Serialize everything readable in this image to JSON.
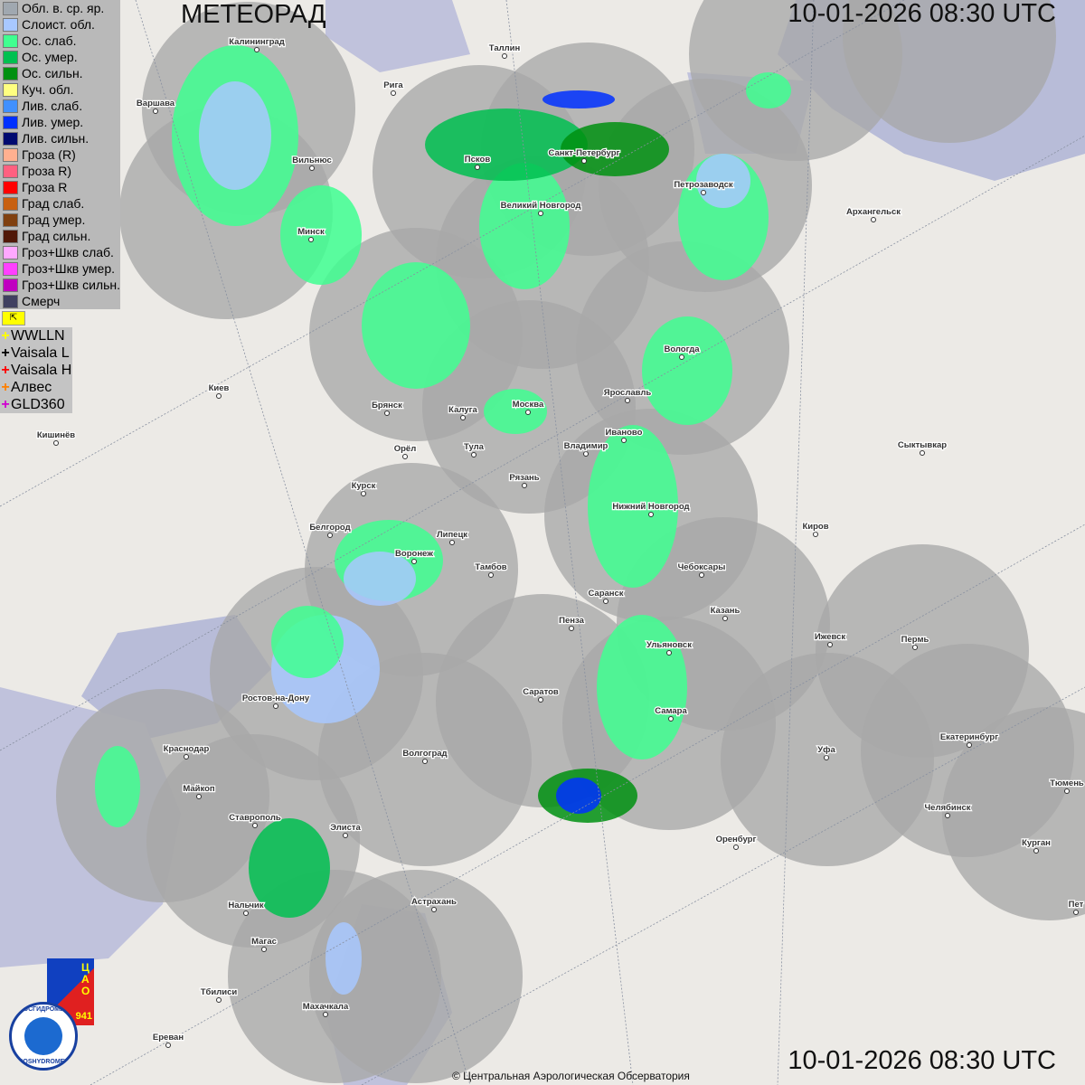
{
  "header": {
    "title": "МЕТЕОРАД",
    "timestamp": "10-01-2026  08:30 UTC"
  },
  "footer": {
    "timestamp": "10-01-2026  08:30 UTC",
    "copyright": "© Центральная Аэрологическая Обсерватория"
  },
  "legend": [
    {
      "label": "Обл. в. ср. яр.",
      "color": "#a0a8b0"
    },
    {
      "label": "Слоист. обл.",
      "color": "#a8c8ff"
    },
    {
      "label": "Ос. слаб.",
      "color": "#40ff90"
    },
    {
      "label": "Ос. умер.",
      "color": "#00c050"
    },
    {
      "label": "Ос. сильн.",
      "color": "#009010"
    },
    {
      "label": "Куч. обл.",
      "color": "#ffff80"
    },
    {
      "label": "Лив. слаб.",
      "color": "#4090ff"
    },
    {
      "label": "Лив. умер.",
      "color": "#0030ff"
    },
    {
      "label": "Лив. сильн.",
      "color": "#000a70"
    },
    {
      "label": "Гроза (R)",
      "color": "#ffb090"
    },
    {
      "label": "Гроза R)",
      "color": "#ff6080"
    },
    {
      "label": "Гроза R",
      "color": "#ff0000"
    },
    {
      "label": "Град слаб.",
      "color": "#c86010"
    },
    {
      "label": "Град умер.",
      "color": "#804010"
    },
    {
      "label": "Град сильн.",
      "color": "#501808"
    },
    {
      "label": "Гроз+Шкв слаб.",
      "color": "#ffa8ff"
    },
    {
      "label": "Гроз+Шкв умер.",
      "color": "#ff40ff"
    },
    {
      "label": "Гроз+Шкв сильн.",
      "color": "#c000c0"
    },
    {
      "label": "Смерч",
      "color": "#404060"
    }
  ],
  "lightning": [
    {
      "label": "WWLLN",
      "color": "#ffff00"
    },
    {
      "label": "Vaisala L",
      "color": "#000000"
    },
    {
      "label": "Vaisala H",
      "color": "#ff0000"
    },
    {
      "label": "Алвес",
      "color": "#ff8000"
    },
    {
      "label": "GLD360",
      "color": "#d000d0"
    }
  ],
  "logo": {
    "cao": "ЦАО",
    "year": "941",
    "ring_top": "РОСГИДРОМЕТ",
    "ring_bottom": "ROSHYDROMET"
  },
  "cities": [
    "Калининград",
    "Таллин",
    "Рига",
    "Варшава",
    "Псков",
    "Санкт-Петербург",
    "Петрозаводск",
    "Архангельск",
    "Вильнюс",
    "Великий Новгород",
    "Минск",
    "Вологда",
    "Киев",
    "Брянск",
    "Калуга",
    "Москва",
    "Ярославль",
    "Кишинёв",
    "Иваново",
    "Орёл",
    "Тула",
    "Владимир",
    "Сыктывкар",
    "Рязань",
    "Курск",
    "Нижний Новгород",
    "Белгород",
    "Липецк",
    "Киров",
    "Воронеж",
    "Тамбов",
    "Чебоксары",
    "Саранск",
    "Пенза",
    "Казань",
    "Ижевск",
    "Пермь",
    "Ульяновск",
    "Саратов",
    "Ростов-на-Дону",
    "Самара",
    "Уфа",
    "Екатеринбург",
    "Краснодар",
    "Волгоград",
    "Майкоп",
    "Тюмень",
    "Челябинск",
    "Ставрополь",
    "Элиста",
    "Оренбург",
    "Курган",
    "Астрахань",
    "Пет",
    "Нальчик",
    "Магас",
    "Тбилиси",
    "Махачкала",
    "Ереван"
  ]
}
